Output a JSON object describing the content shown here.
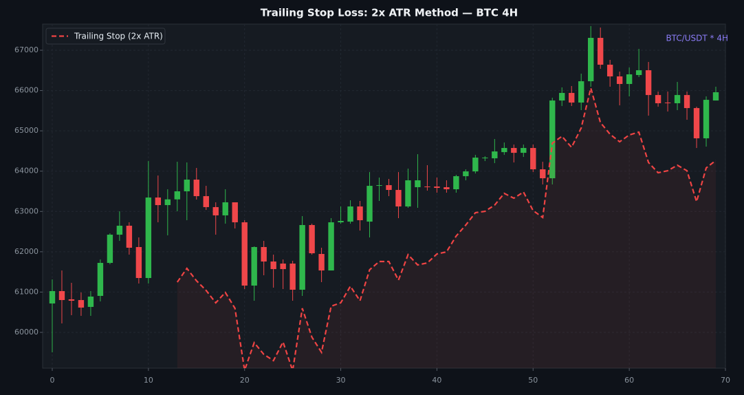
{
  "chart_data": {
    "type": "candlestick",
    "title": "Trailing Stop Loss: 2x ATR Method — BTC 4H",
    "annotation": "BTC/USDT * 4H",
    "x": [
      0,
      1,
      2,
      3,
      4,
      5,
      6,
      7,
      8,
      9,
      10,
      11,
      12,
      13,
      14,
      15,
      16,
      17,
      18,
      19,
      20,
      21,
      22,
      23,
      24,
      25,
      26,
      27,
      28,
      29,
      30,
      31,
      32,
      33,
      34,
      35,
      36,
      37,
      38,
      39,
      40,
      41,
      42,
      43,
      44,
      45,
      46,
      47,
      48,
      49,
      50,
      51,
      52,
      53,
      54,
      55,
      56,
      57,
      58,
      59,
      60,
      61,
      62,
      63,
      64,
      65,
      66,
      67,
      68,
      69
    ],
    "open": [
      60717,
      61024,
      60820,
      60802,
      60632,
      60905,
      61724,
      62424,
      62646,
      62117,
      61349,
      63346,
      63158,
      63300,
      63500,
      63790,
      63380,
      63108,
      62903,
      63227,
      62731,
      61161,
      62117,
      61758,
      61707,
      61707,
      61058,
      62663,
      61946,
      61536,
      62731,
      62748,
      63124,
      62748,
      63636,
      63653,
      63534,
      63124,
      63602,
      63619,
      63619,
      63602,
      63551,
      63875,
      63994,
      64319,
      64319,
      64472,
      64575,
      64455,
      64575,
      64046,
      63824,
      65753,
      65941,
      65702,
      66231,
      67307,
      66641,
      66351,
      66163,
      66385,
      66504,
      65889,
      65702,
      65685,
      65889,
      65565,
      64815,
      65753
    ],
    "high": [
      61314,
      61536,
      61229,
      60990,
      61024,
      61809,
      62458,
      63004,
      62731,
      62356,
      64250,
      63892,
      63551,
      64233,
      64216,
      64080,
      63636,
      63227,
      63551,
      63227,
      62783,
      62134,
      62270,
      61929,
      61809,
      61775,
      62885,
      62697,
      62100,
      62834,
      63124,
      63278,
      63261,
      63977,
      63841,
      63807,
      63977,
      64063,
      64421,
      64148,
      63841,
      63773,
      63909,
      64045,
      64404,
      64370,
      64797,
      64711,
      64660,
      64660,
      64660,
      64233,
      65821,
      66078,
      66112,
      66419,
      67600,
      67563,
      66761,
      66470,
      66573,
      67034,
      66709,
      65975,
      65975,
      66214,
      65975,
      65599,
      65855,
      66095
    ],
    "low": [
      59505,
      60222,
      60427,
      60410,
      60410,
      60768,
      61690,
      62270,
      61929,
      61212,
      61212,
      62731,
      62407,
      63004,
      62783,
      63295,
      63038,
      62424,
      62697,
      62578,
      61075,
      60785,
      61417,
      61110,
      61075,
      60785,
      60905,
      61929,
      61246,
      61536,
      62697,
      62697,
      62526,
      62356,
      63261,
      63380,
      62834,
      63090,
      63090,
      63517,
      63466,
      63466,
      63466,
      63773,
      63943,
      64250,
      64199,
      64404,
      64216,
      64353,
      63977,
      63670,
      63670,
      65616,
      65616,
      65514,
      66095,
      66539,
      66095,
      65633,
      65855,
      66334,
      65377,
      65599,
      65480,
      65514,
      65275,
      64575,
      64609,
      65753
    ],
    "close": [
      61024,
      60802,
      60785,
      60615,
      60888,
      61724,
      62424,
      62646,
      62100,
      61349,
      63346,
      63158,
      63300,
      63500,
      63790,
      63380,
      63108,
      62903,
      63227,
      62731,
      61161,
      62117,
      61758,
      61570,
      61570,
      61058,
      62663,
      61963,
      61536,
      62731,
      62766,
      63124,
      62783,
      63636,
      63653,
      63534,
      63124,
      63773,
      63773,
      63602,
      63585,
      63551,
      63875,
      63994,
      64336,
      64336,
      64489,
      64575,
      64455,
      64575,
      64046,
      63824,
      65753,
      65941,
      65702,
      66231,
      67307,
      66641,
      66351,
      66163,
      66402,
      66504,
      65889,
      65685,
      65685,
      65889,
      65565,
      64815,
      65770,
      65958
    ],
    "up_color": "#2fb74c",
    "down_color": "#f0474a",
    "series": [
      {
        "name": "Trailing Stop (2x ATR)",
        "color": "#ef4444",
        "values": [
          null,
          null,
          null,
          null,
          null,
          null,
          null,
          null,
          null,
          null,
          null,
          null,
          null,
          61246,
          61588,
          61280,
          61041,
          60734,
          60990,
          60597,
          59061,
          59744,
          59454,
          59300,
          59761,
          59050,
          60597,
          59881,
          59505,
          60649,
          60734,
          61144,
          60785,
          61553,
          61758,
          61758,
          61297,
          61929,
          61673,
          61724,
          61946,
          61997,
          62390,
          62663,
          62970,
          63004,
          63158,
          63449,
          63329,
          63483,
          63022,
          62851,
          64694,
          64865,
          64592,
          65070,
          66061,
          65207,
          64917,
          64729,
          64899,
          64968,
          64216,
          63960,
          64011,
          64148,
          64011,
          63244,
          64080,
          64267
        ]
      }
    ],
    "xlim": [
      -1,
      70
    ],
    "ylim": [
      59112,
      67649
    ],
    "xticks": [
      0,
      10,
      20,
      30,
      40,
      50,
      60,
      70
    ],
    "yticks": [
      60000,
      61000,
      62000,
      63000,
      64000,
      65000,
      66000,
      67000
    ],
    "grid": true,
    "legend": "upper left"
  }
}
